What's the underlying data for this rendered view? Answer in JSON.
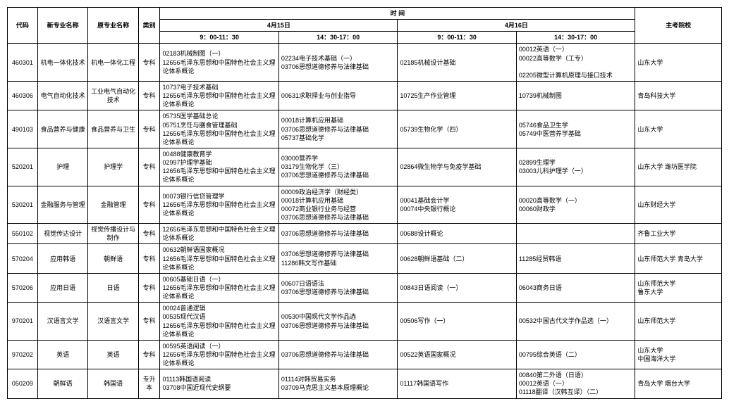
{
  "headers": {
    "code": "代码",
    "new_major": "新专业名称",
    "old_major": "原专业名称",
    "type": "类别",
    "time_group": "时  间",
    "day1": "4月15日",
    "day2": "4月16日",
    "slot_am": "9：00-11：30",
    "slot_pm": "14：30-17：00",
    "school": "主考院校"
  },
  "rows": [
    {
      "code": "460301",
      "new_major": "机电一体化技术",
      "old_major": "机电一体化工程",
      "type": "专科",
      "d1am": "02183机械制图（一）\n12656毛泽东思想和中国特色社会主义理论体系概论",
      "d1pm": "02234电子技术基础（一）\n03706思想道德修养与法律基础",
      "d2am": "02185机械设计基础",
      "d2pm": "00012英语（一）\n00022高等数学（工专）\n\n02205微型计算机原理与接口技术",
      "school": "山东大学"
    },
    {
      "code": "460306",
      "new_major": "电气自动化技术",
      "old_major": "工业电气自动化技术",
      "type": "专科",
      "d1am": "10737电子技术基础\n12656毛泽东思想和中国特色社会主义理论体系概论",
      "d1pm": "00631求职择业与创业指导",
      "d2am": "10725生产作业管理",
      "d2pm": "10739机械制图",
      "school": "青岛科技大学"
    },
    {
      "code": "490103",
      "new_major": "食品营养与健康",
      "old_major": "食品营养与卫生",
      "type": "专科",
      "d1am": "05735医学基础总论\n05751烹饪与膳食管理基础\n12656毛泽东思想和中国特色社会主义理论体系概论",
      "d1pm": "00018计算机应用基础\n03706思想道德修养与法律基础\n05737基础化学",
      "d2am": "05739生物化学（四）",
      "d2pm": "05746食品卫生学\n05749中医营养学基础",
      "school": "山东大学"
    },
    {
      "code": "520201",
      "new_major": "护理",
      "old_major": "护理学",
      "type": "专科",
      "d1am": "00488健康教育学\n02997护理学基础\n12656毛泽东思想和中国特色社会主义理论体系概论",
      "d1pm": "03000营养学\n03179生物化学（三）\n03706思想道德修养与法律基础",
      "d2am": "02864微生物学与免疫学基础",
      "d2pm": "02899生理学\n03003儿科护理学（一）",
      "school": "山东大学  潍坊医学院"
    },
    {
      "code": "530201",
      "new_major": "金融服务与管理",
      "old_major": "金融管理",
      "type": "专科",
      "d1am": "00073银行信贷管理学\n12656毛泽东思想和中国特色社会主义理论体系概论",
      "d1pm": "00009政治经济学（财经类）\n00018计算机应用基础\n00072商业银行业务与经营\n03706思想道德修养与法律基础",
      "d2am": "00041基础会计学\n00074中央银行概论",
      "d2pm": "00020高等数学（一）\n00060财政学",
      "school": "山东财经大学"
    },
    {
      "code": "550102",
      "new_major": "视觉传达设计",
      "old_major": "视觉传播设计与制作",
      "type": "专科",
      "d1am": "12656毛泽东思想和中国特色社会主义理论体系概论",
      "d1pm": "03706思想道德修养与法律基础",
      "d2am": "00688设计概论",
      "d2pm": "",
      "school": "齐鲁工业大学"
    },
    {
      "code": "570204",
      "new_major": "应用韩语",
      "old_major": "朝鲜语",
      "type": "专科",
      "d1am": "00632朝鲜语国家概况\n12656毛泽东思想和中国特色社会主义理论体系概论",
      "d1pm": "03706思想道德修养与法律基础\n11286韩文写作基础",
      "d2am": "00628朝鲜语基础（二）",
      "d2pm": "11285经贸韩语",
      "school": "山东师范大学  青岛大学"
    },
    {
      "code": "570206",
      "new_major": "应用日语",
      "old_major": "日语",
      "type": "专科",
      "d1am": "00605基础日语（一）\n12656毛泽东思想和中国特色社会主义理论体系概论",
      "d1pm": "00607日语语法\n03706思想道德修养与法律基础",
      "d2am": "00843日语阅读（一）",
      "d2pm": "06043商务日语",
      "school": "山东师范大学\n鲁东大学"
    },
    {
      "code": "970201",
      "new_major": "汉语言文学",
      "old_major": "汉语言文学",
      "type": "专科",
      "d1am": "00024普通逻辑\n00535现代汉语\n12656毛泽东思想和中国特色社会主义理论体系概论",
      "d1pm": "00530中国现代文学作品选\n03706思想道德修养与法律基础",
      "d2am": "00506写作（一）",
      "d2pm": "00532中国古代文学作品选（一）",
      "school": "山东师范大学"
    },
    {
      "code": "970202",
      "new_major": "英语",
      "old_major": "英语",
      "type": "专科",
      "d1am": "00595英语阅读（一）\n12656毛泽东思想和中国特色社会主义理论体系概论",
      "d1pm": "03706思想道德修养与法律基础",
      "d2am": "00522英语国家概况",
      "d2pm": "00795综合英语（二）",
      "school": "山东大学\n中国海洋大学"
    },
    {
      "code": "050209",
      "new_major": "朝鲜语",
      "old_major": "韩国语",
      "type": "专升本",
      "d1am": "01113韩国语阅读\n03708中国近现代史纲要",
      "d1pm": "01114对韩贸易实务\n03709马克思主义基本原理概论",
      "d2am": "01117韩国语写作",
      "d2pm": "00840第二外语（日语）\n00012英语（一）\n01118翻译（汉韩互译）（二）",
      "school": "青岛大学  烟台大学"
    }
  ]
}
